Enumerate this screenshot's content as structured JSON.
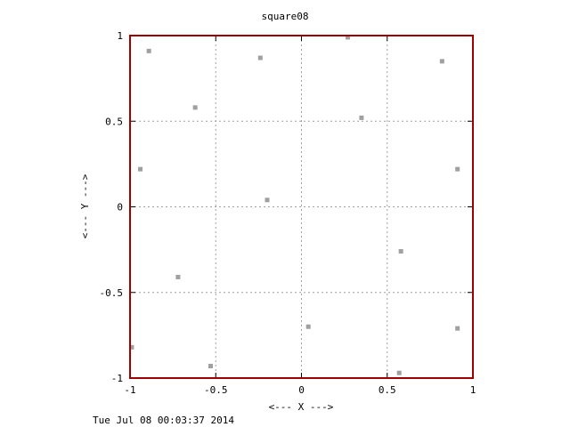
{
  "chart_data": {
    "type": "scatter",
    "title": "square08",
    "xlabel": "<--- X --->",
    "ylabel": "<--- Y --->",
    "xlim": [
      -1,
      1
    ],
    "ylim": [
      -1,
      1
    ],
    "x_ticks": [
      "-1",
      "-0.5",
      "0",
      "0.5",
      "1"
    ],
    "y_ticks": [
      "-1",
      "-0.5",
      "0",
      "0.5",
      "1"
    ],
    "grid": true,
    "points": [
      {
        "x": -0.89,
        "y": 0.91
      },
      {
        "x": -0.62,
        "y": 0.58
      },
      {
        "x": -0.24,
        "y": 0.87
      },
      {
        "x": 0.27,
        "y": 0.99
      },
      {
        "x": 0.35,
        "y": 0.52
      },
      {
        "x": 0.82,
        "y": 0.85
      },
      {
        "x": -0.94,
        "y": 0.22
      },
      {
        "x": 0.91,
        "y": 0.22
      },
      {
        "x": -0.2,
        "y": 0.04
      },
      {
        "x": 0.58,
        "y": -0.26
      },
      {
        "x": -0.72,
        "y": -0.41
      },
      {
        "x": 0.04,
        "y": -0.7
      },
      {
        "x": 0.91,
        "y": -0.71
      },
      {
        "x": -0.99,
        "y": -0.82
      },
      {
        "x": -0.53,
        "y": -0.93
      },
      {
        "x": 0.57,
        "y": -0.97
      }
    ],
    "colors": {
      "border": "#a00000",
      "points": "#a0a0a0",
      "grid": "#a0a0a0"
    }
  },
  "footer": {
    "timestamp": "Tue Jul 08 00:03:37 2014"
  }
}
